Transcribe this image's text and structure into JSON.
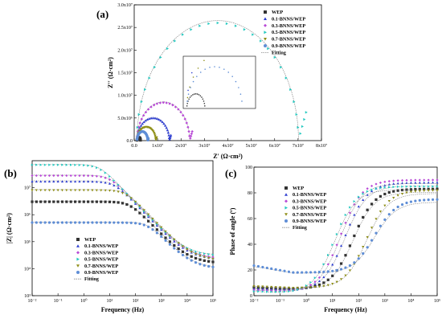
{
  "colors": {
    "WEP": "#333333",
    "0.1-BNNS/WEP": "#2f3fd1",
    "0.3-BNNS/WEP": "#b84ad6",
    "0.5-BNNS/WEP": "#25c9c0",
    "0.7-BNNS/WEP": "#8f8f18",
    "0.9-BNNS/WEP": "#5f8ed6",
    "Fitting": "#888888"
  },
  "chart_data": [
    {
      "panel": "(a)",
      "type": "scatter",
      "xlabel": "Z' (Ω·cm²)",
      "ylabel": "Z'' (Ω·cm²)",
      "xlim": [
        0,
        80000000
      ],
      "ylim": [
        0,
        30000000
      ],
      "x_ticks": [
        "0.0",
        "1x10⁷",
        "2x10⁷",
        "3x10⁷",
        "4x10⁷",
        "5x10⁷",
        "6x10⁷",
        "7x10⁷",
        "8x10⁷"
      ],
      "y_ticks": [
        "0.0",
        "5.0x10⁶",
        "1.0x10⁷",
        "1.5x10⁷",
        "2.0x10⁷",
        "2.5x10⁷",
        "3.0x10⁷"
      ],
      "legend": [
        "WEP",
        "0.1-BNNS/WEP",
        "0.3-BNNS/WEP",
        "0.5-BNNS/WEP",
        "0.7-BNNS/WEP",
        "0.9-BNNS/WEP",
        "Fitting"
      ],
      "legend_position": "top-right",
      "series": [
        {
          "name": "WEP",
          "diameter": 1500000,
          "peak": 700000,
          "tail": false
        },
        {
          "name": "0.1-BNNS/WEP",
          "diameter": 13800000,
          "peak": 5000000,
          "tail": true
        },
        {
          "name": "0.3-BNNS/WEP",
          "diameter": 22500000,
          "peak": 8400000,
          "tail": true
        },
        {
          "name": "0.5-BNNS/WEP",
          "diameter": 69000000,
          "peak": 26000000,
          "tail": true
        },
        {
          "name": "0.7-BNNS/WEP",
          "diameter": 8000000,
          "peak": 3000000,
          "tail": true
        },
        {
          "name": "0.9-BNNS/WEP",
          "diameter": 4600000,
          "peak": 2000000,
          "tail": true
        }
      ]
    },
    {
      "panel": "(b)",
      "type": "scatter",
      "xlabel": "Frequency (Hz)",
      "ylabel": "|Z| (Ω·cm²)",
      "xscale": "log",
      "yscale": "log",
      "xlim": [
        0.01,
        100000
      ],
      "ylim": [
        1000,
        100000000
      ],
      "x_ticks": [
        "10⁻²",
        "10⁻¹",
        "10⁰",
        "10¹",
        "10²",
        "10³",
        "10⁴",
        "10⁵"
      ],
      "y_ticks": [
        "10³",
        "10⁴",
        "10⁵",
        "10⁶",
        "10⁷"
      ],
      "legend": [
        "WEP",
        "0.1-BNNS/WEP",
        "0.3-BNNS/WEP",
        "0.5-BNNS/WEP",
        "0.7-BNNS/WEP",
        "0.9-BNNS/WEP",
        "Fitting"
      ],
      "legend_position": "bottom-left",
      "series": [
        {
          "name": "WEP",
          "z0": 3000000,
          "fc": 60,
          "zhf": 16000
        },
        {
          "name": "0.1-BNNS/WEP",
          "z0": 17000000,
          "fc": 15,
          "zhf": 22000
        },
        {
          "name": "0.3-BNNS/WEP",
          "z0": 28000000,
          "fc": 10,
          "zhf": 24000
        },
        {
          "name": "0.5-BNNS/WEP",
          "z0": 70000000,
          "fc": 4,
          "zhf": 30000
        },
        {
          "name": "0.7-BNNS/WEP",
          "z0": 8000000,
          "fc": 40,
          "zhf": 20000
        },
        {
          "name": "0.9-BNNS/WEP",
          "z0": 500000,
          "fc": 300,
          "zhf": 10000
        }
      ]
    },
    {
      "panel": "(c)",
      "type": "scatter",
      "xlabel": "Frequency (Hz)",
      "ylabel": "Phase of angle (º)",
      "xscale": "log",
      "xlim": [
        0.01,
        100000
      ],
      "ylim": [
        0,
        100
      ],
      "x_ticks": [
        "10⁻²",
        "10⁻¹",
        "10⁰",
        "10¹",
        "10²",
        "10³",
        "10⁴",
        "10⁵"
      ],
      "y_ticks": [
        "0",
        "20",
        "40",
        "60",
        "80",
        "100"
      ],
      "legend": [
        "WEP",
        "0.1-BNNS/WEP",
        "0.3-BNNS/WEP",
        "0.5-BNNS/WEP",
        "0.7-BNNS/WEP",
        "0.9-BNNS/WEP",
        "Fitting"
      ],
      "legend_position": "top-left",
      "series": [
        {
          "name": "WEP",
          "p_low": 5,
          "p_high": 83,
          "f_mid": 60
        },
        {
          "name": "0.1-BNNS/WEP",
          "p_low": 4,
          "p_high": 88,
          "f_mid": 30
        },
        {
          "name": "0.3-BNNS/WEP",
          "p_low": 3,
          "p_high": 90,
          "f_mid": 20
        },
        {
          "name": "0.5-BNNS/WEP",
          "p_low": 2,
          "p_high": 85,
          "f_mid": 12
        },
        {
          "name": "0.7-BNNS/WEP",
          "p_low": 6,
          "p_high": 82,
          "f_mid": 200
        },
        {
          "name": "0.9-BNNS/WEP",
          "p_low": 18,
          "p_high": 75,
          "f_mid": 400
        }
      ]
    }
  ]
}
